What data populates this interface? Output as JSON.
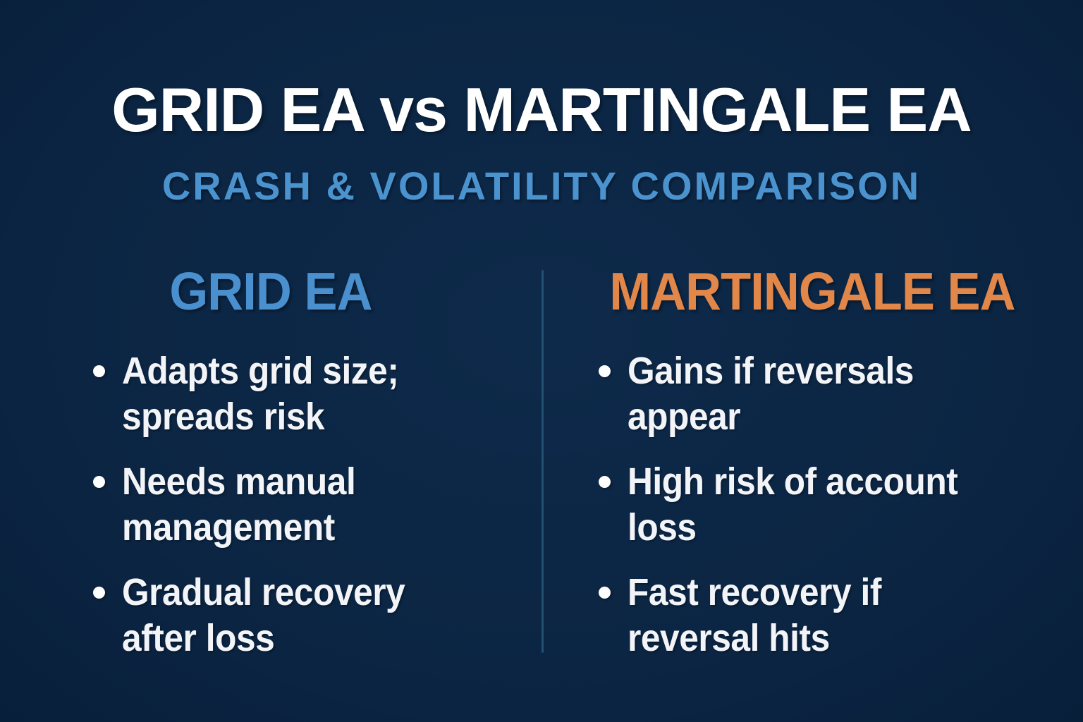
{
  "title": "GRID EA vs MARTINGALE EA",
  "subtitle": "CRASH & VOLATILITY COMPARISON",
  "columns": [
    {
      "header": "GRID EA",
      "bullets": [
        "Adapts grid size;\nspreads risk",
        "Needs manual\nmanagement",
        "Gradual recovery\nafter loss"
      ]
    },
    {
      "header": "MARTINGALE EA",
      "bullets": [
        "Gains if reversals\nappear",
        "High risk of account\nloss",
        "Fast recovery if\nreversal hits"
      ]
    }
  ],
  "colors": {
    "background": "#0B2543",
    "background_light": "#0E2A4A",
    "background_dark": "#081F3A",
    "title_text": "#FFFFFF",
    "subtitle_text": "#4B93CF",
    "grid_header": "#4A90CE",
    "martingale_header": "#E2874A",
    "body_text": "#F2F4F8",
    "divider": "#215070",
    "bullet_dot": "#FFFFFF"
  }
}
